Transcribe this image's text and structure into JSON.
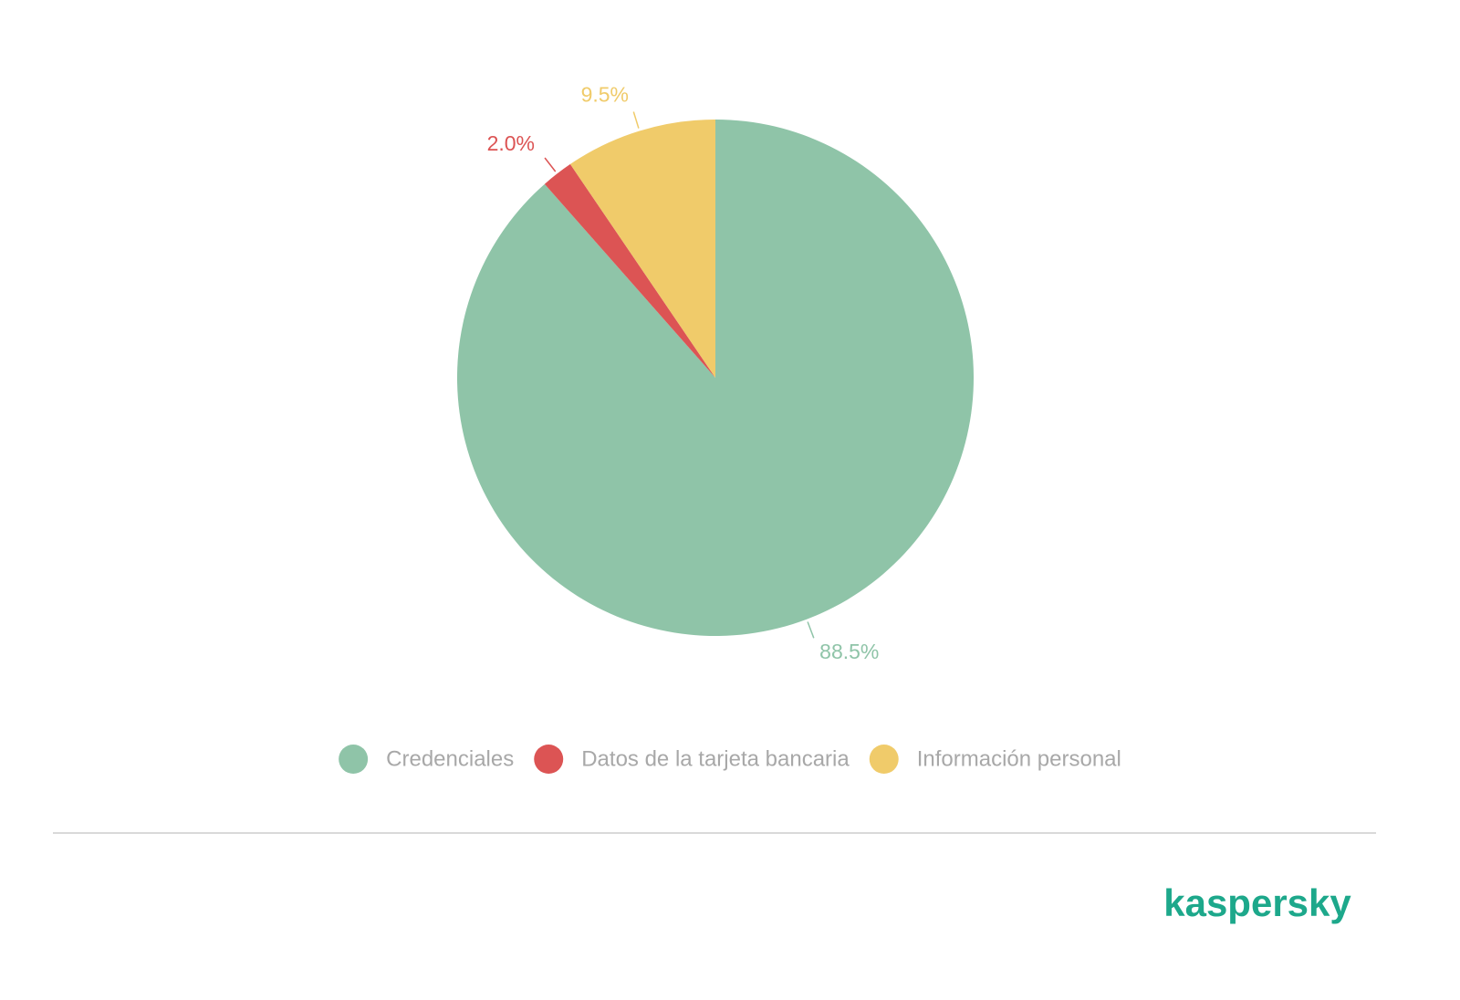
{
  "chart_data": {
    "type": "pie",
    "categories": [
      "Credenciales",
      "Datos de la tarjeta bancaria",
      "Información personal"
    ],
    "values": [
      88.5,
      2.0,
      9.5
    ],
    "value_labels": [
      "88.5%",
      "2.0%",
      "9.5%"
    ],
    "colors": [
      "#8fc4a8",
      "#dc5454",
      "#f0cb6a"
    ],
    "legend": "bottom"
  },
  "brand": "kaspersky"
}
